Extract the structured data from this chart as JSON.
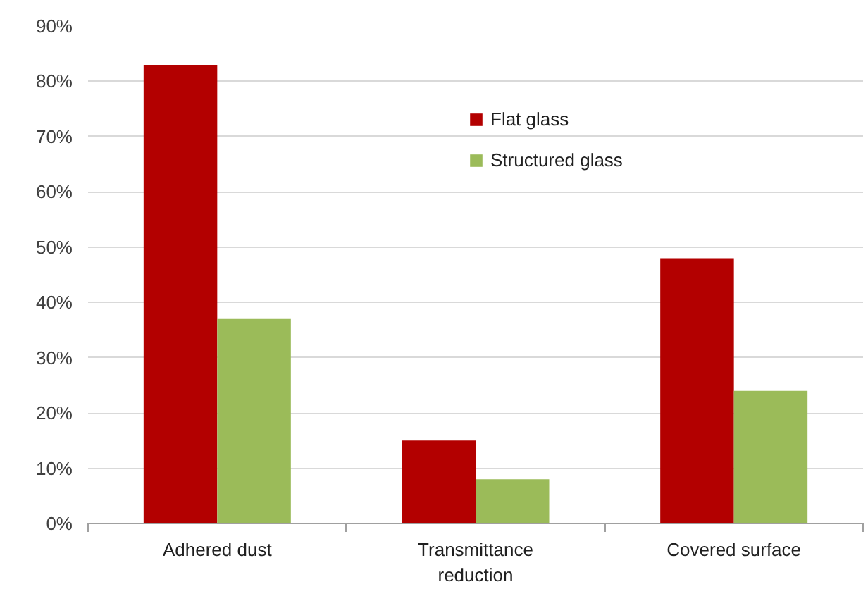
{
  "chart_data": {
    "type": "bar",
    "categories": [
      "Adhered dust",
      "Transmittance\nreduction",
      "Covered surface"
    ],
    "series": [
      {
        "name": "Flat glass",
        "color": "#b30000",
        "values": [
          83,
          15,
          48
        ]
      },
      {
        "name": "Structured glass",
        "color": "#9bbb59",
        "values": [
          37,
          8,
          24
        ]
      }
    ],
    "ylim": [
      0,
      90
    ],
    "yticks": [
      {
        "value": 0,
        "label": "0%"
      },
      {
        "value": 10,
        "label": "10%"
      },
      {
        "value": 20,
        "label": "20%"
      },
      {
        "value": 30,
        "label": "30%"
      },
      {
        "value": 40,
        "label": "40%"
      },
      {
        "value": 50,
        "label": "50%"
      },
      {
        "value": 60,
        "label": "60%"
      },
      {
        "value": 70,
        "label": "70%"
      },
      {
        "value": 80,
        "label": "80%"
      },
      {
        "value": 90,
        "label": "90%"
      }
    ],
    "grid": "y",
    "legend": "top"
  }
}
